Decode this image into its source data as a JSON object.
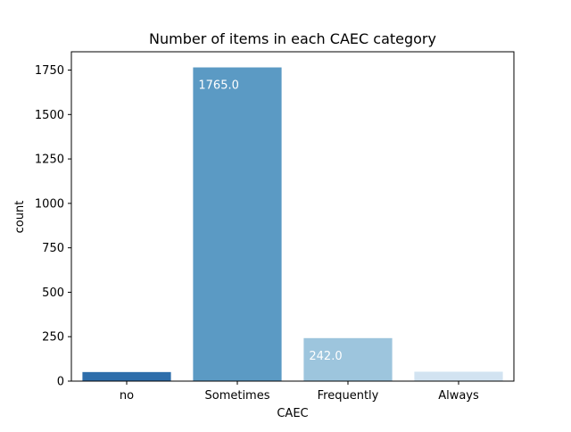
{
  "chart_data": {
    "type": "bar",
    "title": "Number of items in each CAEC category",
    "xlabel": "CAEC",
    "ylabel": "count",
    "categories": [
      "no",
      "Sometimes",
      "Frequently",
      "Always"
    ],
    "values": [
      51,
      1765,
      242,
      53
    ],
    "data_labels": [
      "",
      "1765.0",
      "242.0",
      ""
    ],
    "colors": [
      "#2e6eab",
      "#5b9ac4",
      "#9dc5dd",
      "#d2e3f1"
    ],
    "ylim": [
      0,
      1853
    ],
    "yticks": [
      0,
      250,
      500,
      750,
      1000,
      1250,
      1500,
      1750
    ],
    "grid": false,
    "legend": "none"
  }
}
